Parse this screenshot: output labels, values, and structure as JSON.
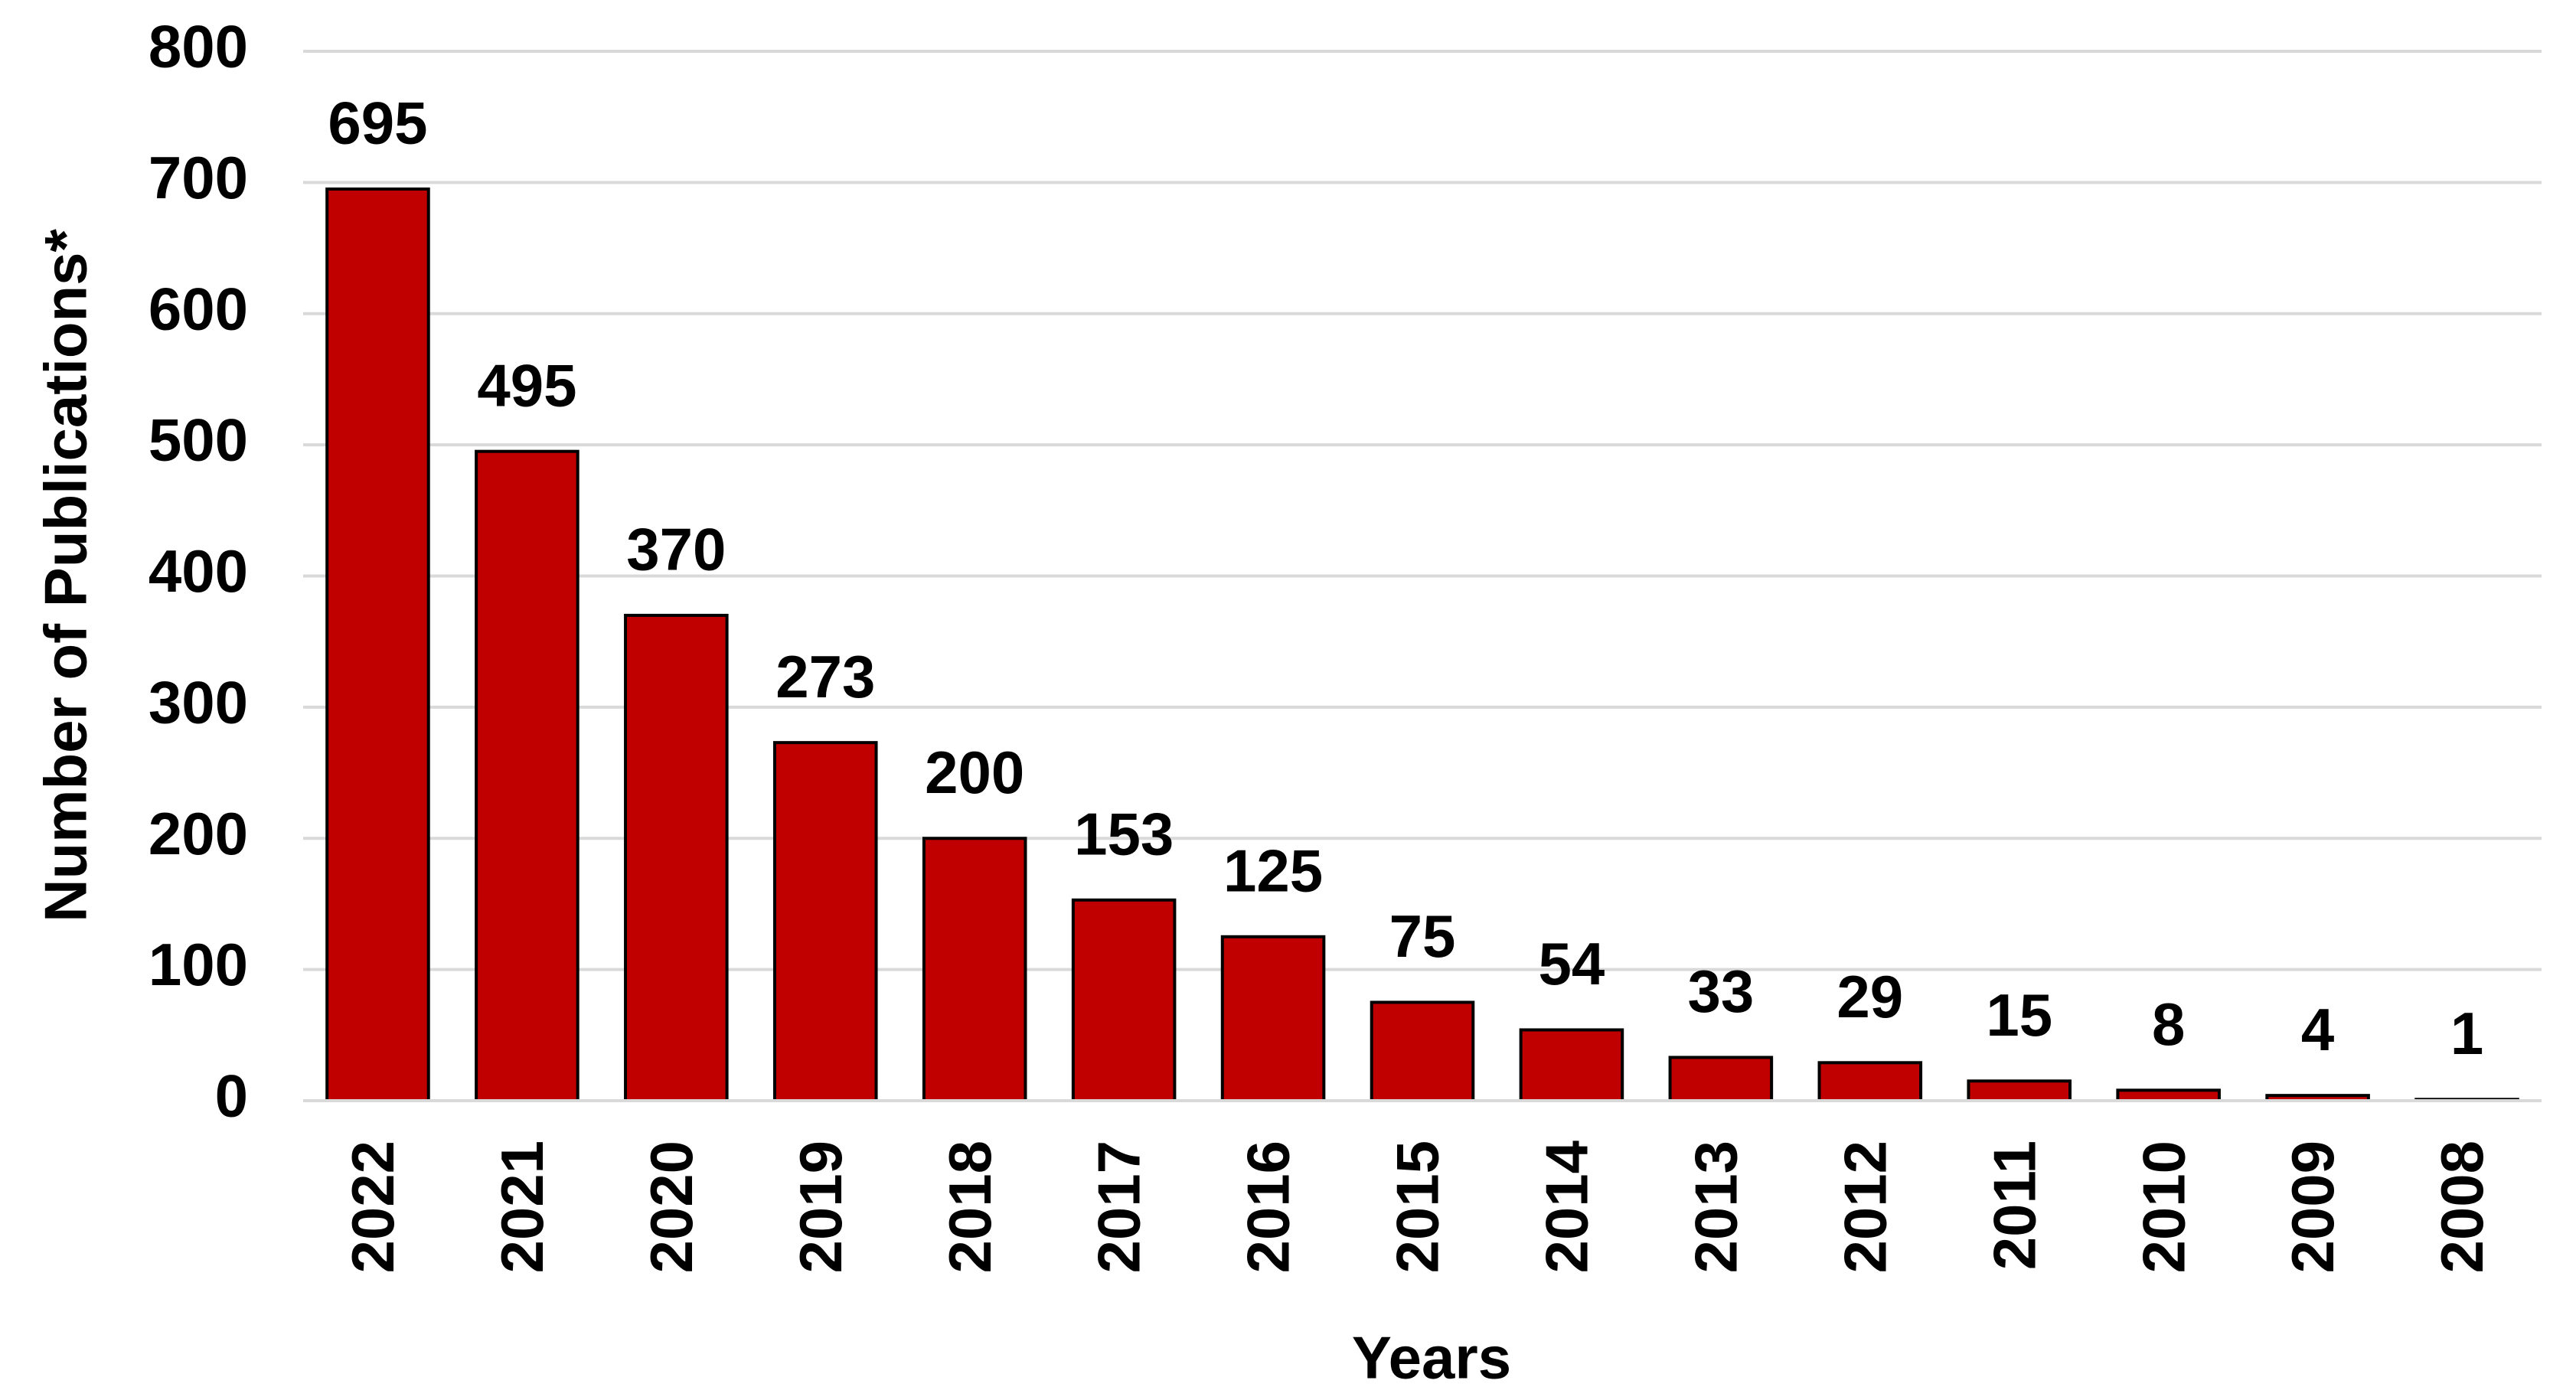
{
  "chart_data": {
    "type": "bar",
    "x_label": "Years",
    "y_label": "Number of Publications*",
    "categories": [
      "2022",
      "2021",
      "2020",
      "2019",
      "2018",
      "2017",
      "2016",
      "2015",
      "2014",
      "2013",
      "2012",
      "2011",
      "2010",
      "2009",
      "2008"
    ],
    "values": [
      695,
      495,
      370,
      273,
      200,
      153,
      125,
      75,
      54,
      33,
      29,
      15,
      8,
      4,
      1
    ],
    "color": "#c00000",
    "ylim": [
      0,
      800
    ],
    "yticks": [
      0,
      100,
      200,
      300,
      400,
      500,
      600,
      700,
      800
    ],
    "grid": true
  }
}
